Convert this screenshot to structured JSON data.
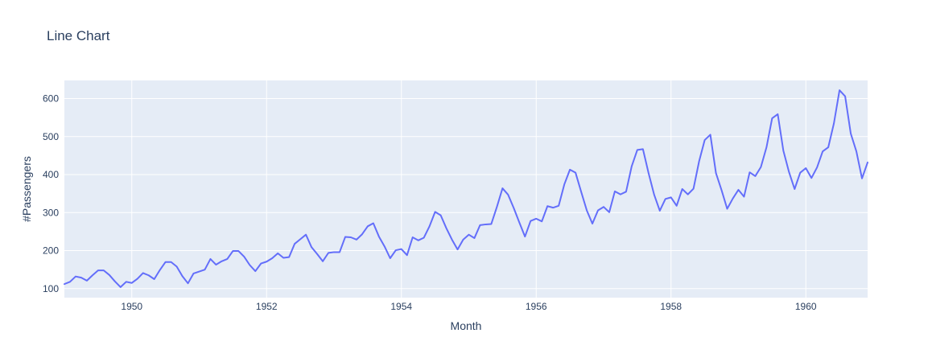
{
  "chart_data": {
    "type": "line",
    "title": "Line Chart",
    "xlabel": "Month",
    "ylabel": "#Passengers",
    "x_start": "1949-01",
    "x_frequency": "monthly",
    "x_range": [
      "1949-01",
      "1960-12"
    ],
    "ylim": [
      76.3,
      647.7
    ],
    "x_ticks": [
      1950,
      1952,
      1954,
      1956,
      1958,
      1960
    ],
    "x_tick_labels": [
      "1950",
      "1952",
      "1954",
      "1956",
      "1958",
      "1960"
    ],
    "y_ticks": [
      100,
      200,
      300,
      400,
      500,
      600
    ],
    "y_tick_labels": [
      "100",
      "200",
      "300",
      "400",
      "500",
      "600"
    ],
    "grid": true,
    "legend": "none",
    "series": [
      {
        "values": [
          112,
          118,
          132,
          129,
          121,
          135,
          148,
          148,
          136,
          119,
          104,
          118,
          115,
          126,
          141,
          135,
          125,
          149,
          170,
          170,
          158,
          133,
          114,
          140,
          145,
          150,
          178,
          163,
          172,
          178,
          199,
          199,
          184,
          162,
          146,
          166,
          171,
          180,
          193,
          181,
          183,
          218,
          230,
          242,
          209,
          191,
          172,
          194,
          196,
          196,
          236,
          235,
          229,
          243,
          264,
          272,
          237,
          211,
          180,
          201,
          204,
          188,
          235,
          227,
          234,
          264,
          302,
          293,
          259,
          229,
          203,
          229,
          242,
          233,
          267,
          269,
          270,
          315,
          364,
          347,
          312,
          274,
          237,
          278,
          284,
          277,
          317,
          313,
          318,
          374,
          413,
          405,
          355,
          306,
          271,
          306,
          315,
          301,
          356,
          348,
          355,
          422,
          465,
          467,
          404,
          347,
          305,
          336,
          340,
          318,
          362,
          348,
          363,
          435,
          491,
          505,
          404,
          359,
          310,
          337,
          360,
          342,
          406,
          396,
          420,
          472,
          548,
          559,
          463,
          407,
          362,
          405,
          417,
          391,
          419,
          461,
          472,
          535,
          622,
          606,
          508,
          461,
          390,
          432
        ]
      }
    ]
  },
  "colors": {
    "plot_background": "#E5ECF6",
    "grid": "#ffffff",
    "line": "#636efa",
    "text": "#2a3f5f"
  }
}
